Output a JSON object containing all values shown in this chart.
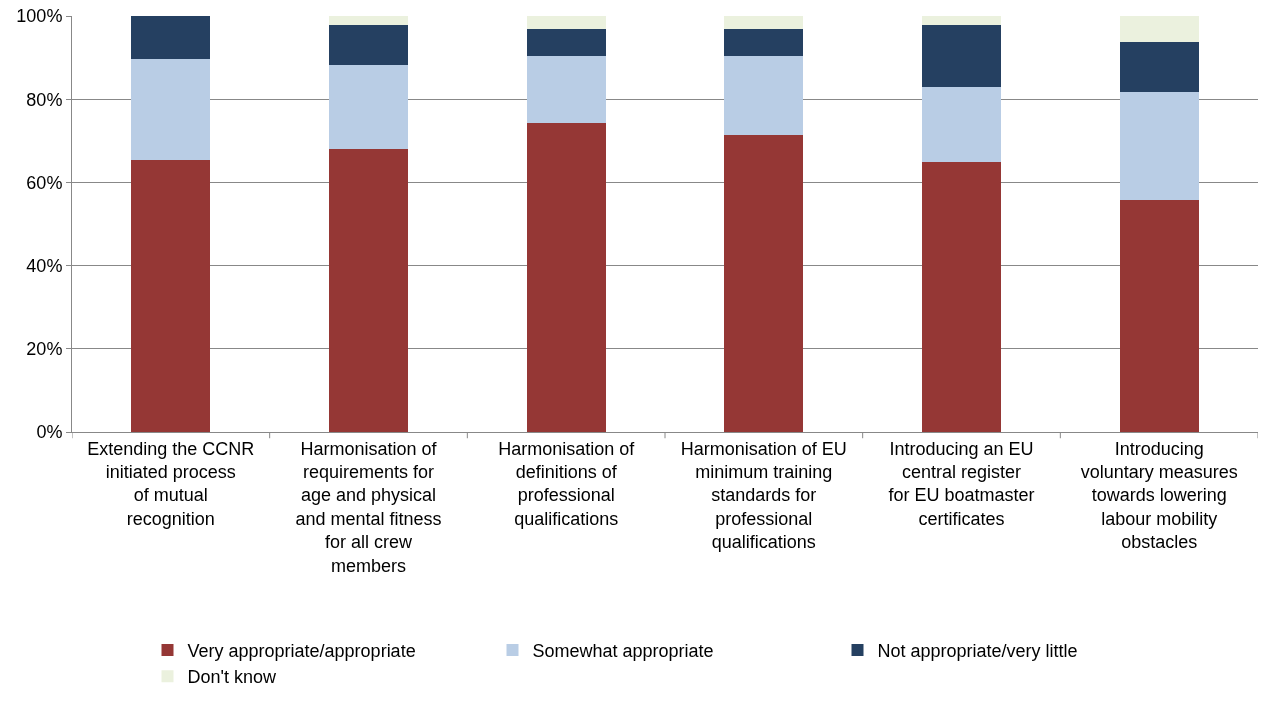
{
  "chart_data": {
    "type": "bar",
    "stacked": true,
    "categories": [
      "Extending the CCNR initiated process of mutual recognition",
      "Harmonisation of requirements for age and physical and mental fitness for all crew members",
      "Harmonisation of definitions of professional qualifications",
      "Harmonisation of EU minimum training standards for professional qualifications",
      "Introducing an EU central register for EU boatmaster certificates",
      "Introducing voluntary measures towards lowering labour mobility obstacles"
    ],
    "series": [
      {
        "name": "Very appropriate/appropriate",
        "color": "#953735",
        "values": [
          65.4,
          68.1,
          74.4,
          71.3,
          64.8,
          55.8
        ]
      },
      {
        "name": "Somewhat appropriate",
        "color": "#b9cde5",
        "values": [
          24.2,
          20.2,
          16.0,
          19.1,
          18.1,
          25.9
        ]
      },
      {
        "name": "Not appropriate/very little",
        "color": "#254061",
        "values": [
          10.4,
          9.6,
          6.5,
          6.5,
          15.0,
          12.1
        ]
      },
      {
        "name": "Don't know",
        "color": "#ebf1de",
        "values": [
          0,
          2.1,
          3.1,
          3.1,
          2.1,
          6.2
        ]
      }
    ],
    "ylim": [
      0,
      100
    ],
    "yticks": [
      {
        "value": 0,
        "label": "0%"
      },
      {
        "value": 20,
        "label": "20%"
      },
      {
        "value": 40,
        "label": "40%"
      },
      {
        "value": 60,
        "label": "60%"
      },
      {
        "value": 80,
        "label": "80%"
      },
      {
        "value": 100,
        "label": "100%"
      }
    ],
    "grid": "y",
    "legend": "bottom"
  }
}
